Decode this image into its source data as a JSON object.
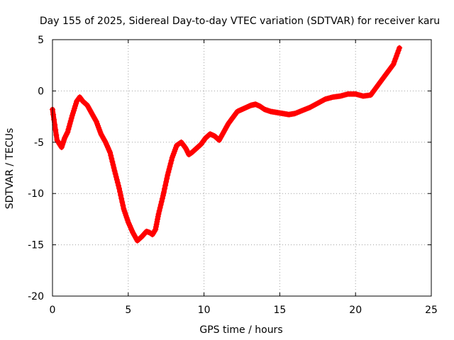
{
  "chart_data": {
    "type": "scatter",
    "title": "Day 155 of 2025, Sidereal Day-to-day VTEC variation (SDTVAR) for receiver karu",
    "xlabel": "GPS time / hours",
    "ylabel": "SDTVAR / TECUs",
    "xlim": [
      0,
      25
    ],
    "ylim": [
      -20,
      5
    ],
    "xticks": [
      0,
      5,
      10,
      15,
      20,
      25
    ],
    "yticks": [
      5,
      0,
      -5,
      -10,
      -15,
      -20
    ],
    "xtick_labels": [
      "0",
      "5",
      "10",
      "15",
      "20",
      "25"
    ],
    "ytick_labels": [
      "5",
      "0",
      "-5",
      "-10",
      "-15",
      "-20"
    ],
    "grid": true,
    "marker": "plus",
    "color": "#ff0000",
    "series": [
      {
        "name": "SDTVAR",
        "x": [
          0.0,
          0.3,
          0.6,
          0.8,
          1.0,
          1.3,
          1.6,
          1.8,
          2.0,
          2.3,
          2.6,
          2.9,
          3.2,
          3.5,
          3.8,
          4.1,
          4.4,
          4.7,
          5.0,
          5.3,
          5.6,
          5.9,
          6.2,
          6.4,
          6.6,
          6.8,
          7.0,
          7.3,
          7.6,
          7.9,
          8.2,
          8.5,
          8.8,
          9.0,
          9.2,
          9.5,
          9.8,
          10.1,
          10.4,
          10.7,
          11.0,
          11.3,
          11.6,
          11.9,
          12.2,
          12.5,
          12.8,
          13.1,
          13.4,
          13.7,
          14.0,
          14.4,
          14.8,
          15.2,
          15.6,
          16.0,
          16.5,
          17.0,
          17.5,
          18.0,
          18.5,
          19.0,
          19.5,
          20.0,
          20.5,
          21.0,
          21.5,
          22.0,
          22.5,
          22.9
        ],
        "y": [
          -1.8,
          -4.8,
          -5.5,
          -4.6,
          -4.0,
          -2.4,
          -1.0,
          -0.6,
          -1.0,
          -1.4,
          -2.2,
          -3.0,
          -4.2,
          -5.0,
          -6.0,
          -7.8,
          -9.5,
          -11.5,
          -12.8,
          -13.8,
          -14.6,
          -14.2,
          -13.7,
          -13.8,
          -14.0,
          -13.5,
          -12.0,
          -10.2,
          -8.2,
          -6.5,
          -5.3,
          -5.0,
          -5.6,
          -6.2,
          -6.0,
          -5.6,
          -5.2,
          -4.6,
          -4.2,
          -4.4,
          -4.8,
          -4.0,
          -3.2,
          -2.6,
          -2.0,
          -1.8,
          -1.6,
          -1.4,
          -1.3,
          -1.5,
          -1.8,
          -2.0,
          -2.1,
          -2.2,
          -2.3,
          -2.2,
          -1.9,
          -1.6,
          -1.2,
          -0.8,
          -0.6,
          -0.5,
          -0.3,
          -0.3,
          -0.5,
          -0.4,
          0.6,
          1.6,
          2.6,
          4.2
        ]
      }
    ]
  }
}
